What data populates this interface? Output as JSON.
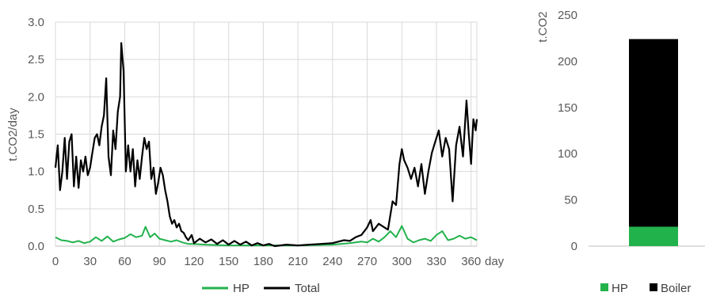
{
  "chart_data": [
    {
      "type": "line",
      "ylabel": "t.CO2/day",
      "xlabel": "day",
      "xlim": [
        0,
        365
      ],
      "ylim": [
        0,
        3.0
      ],
      "x_ticks": [
        "0",
        "30",
        "60",
        "90",
        "120",
        "150",
        "180",
        "210",
        "240",
        "270",
        "300",
        "330",
        "360"
      ],
      "y_ticks": [
        "0.0",
        "0.5",
        "1.0",
        "1.5",
        "2.0",
        "2.5",
        "3.0"
      ],
      "grid": true,
      "legend_position": "bottom",
      "series": [
        {
          "name": "HP",
          "color": "#22b24c",
          "points": [
            [
              0,
              0.12
            ],
            [
              5,
              0.08
            ],
            [
              10,
              0.07
            ],
            [
              15,
              0.05
            ],
            [
              20,
              0.07
            ],
            [
              25,
              0.04
            ],
            [
              30,
              0.06
            ],
            [
              35,
              0.12
            ],
            [
              40,
              0.07
            ],
            [
              45,
              0.13
            ],
            [
              50,
              0.06
            ],
            [
              55,
              0.09
            ],
            [
              60,
              0.11
            ],
            [
              65,
              0.16
            ],
            [
              70,
              0.12
            ],
            [
              75,
              0.14
            ],
            [
              78,
              0.26
            ],
            [
              82,
              0.12
            ],
            [
              86,
              0.17
            ],
            [
              90,
              0.1
            ],
            [
              95,
              0.08
            ],
            [
              100,
              0.06
            ],
            [
              105,
              0.08
            ],
            [
              110,
              0.05
            ],
            [
              115,
              0.03
            ],
            [
              120,
              0.03
            ],
            [
              130,
              0.02
            ],
            [
              150,
              0.01
            ],
            [
              180,
              0.01
            ],
            [
              210,
              0.01
            ],
            [
              240,
              0.02
            ],
            [
              255,
              0.04
            ],
            [
              265,
              0.06
            ],
            [
              270,
              0.05
            ],
            [
              275,
              0.1
            ],
            [
              280,
              0.06
            ],
            [
              285,
              0.12
            ],
            [
              290,
              0.2
            ],
            [
              295,
              0.12
            ],
            [
              300,
              0.27
            ],
            [
              305,
              0.1
            ],
            [
              310,
              0.05
            ],
            [
              315,
              0.08
            ],
            [
              320,
              0.1
            ],
            [
              325,
              0.07
            ],
            [
              330,
              0.15
            ],
            [
              335,
              0.2
            ],
            [
              340,
              0.08
            ],
            [
              345,
              0.1
            ],
            [
              350,
              0.14
            ],
            [
              355,
              0.1
            ],
            [
              360,
              0.12
            ],
            [
              365,
              0.08
            ]
          ]
        },
        {
          "name": "Total",
          "color": "#000000",
          "points": [
            [
              0,
              1.05
            ],
            [
              2,
              1.35
            ],
            [
              4,
              0.75
            ],
            [
              6,
              1.0
            ],
            [
              8,
              1.45
            ],
            [
              10,
              0.9
            ],
            [
              12,
              1.4
            ],
            [
              14,
              1.5
            ],
            [
              16,
              0.8
            ],
            [
              18,
              1.2
            ],
            [
              20,
              0.78
            ],
            [
              22,
              1.15
            ],
            [
              24,
              1.0
            ],
            [
              26,
              1.2
            ],
            [
              28,
              0.95
            ],
            [
              30,
              1.05
            ],
            [
              32,
              1.25
            ],
            [
              34,
              1.45
            ],
            [
              36,
              1.5
            ],
            [
              38,
              1.35
            ],
            [
              40,
              1.6
            ],
            [
              42,
              1.75
            ],
            [
              44,
              2.25
            ],
            [
              46,
              1.2
            ],
            [
              48,
              0.95
            ],
            [
              50,
              1.55
            ],
            [
              52,
              1.3
            ],
            [
              54,
              1.8
            ],
            [
              56,
              2.0
            ],
            [
              57,
              2.72
            ],
            [
              59,
              2.35
            ],
            [
              61,
              1.0
            ],
            [
              63,
              1.35
            ],
            [
              65,
              1.0
            ],
            [
              67,
              1.3
            ],
            [
              69,
              0.8
            ],
            [
              71,
              1.15
            ],
            [
              73,
              0.9
            ],
            [
              75,
              1.2
            ],
            [
              77,
              1.45
            ],
            [
              79,
              1.3
            ],
            [
              81,
              1.4
            ],
            [
              83,
              0.9
            ],
            [
              85,
              1.05
            ],
            [
              87,
              0.7
            ],
            [
              89,
              0.85
            ],
            [
              91,
              1.05
            ],
            [
              93,
              0.95
            ],
            [
              95,
              0.75
            ],
            [
              97,
              0.6
            ],
            [
              99,
              0.4
            ],
            [
              101,
              0.3
            ],
            [
              103,
              0.35
            ],
            [
              105,
              0.25
            ],
            [
              107,
              0.3
            ],
            [
              109,
              0.2
            ],
            [
              111,
              0.18
            ],
            [
              113,
              0.12
            ],
            [
              115,
              0.08
            ],
            [
              118,
              0.15
            ],
            [
              120,
              0.04
            ],
            [
              125,
              0.1
            ],
            [
              130,
              0.05
            ],
            [
              135,
              0.09
            ],
            [
              140,
              0.03
            ],
            [
              145,
              0.08
            ],
            [
              150,
              0.02
            ],
            [
              155,
              0.07
            ],
            [
              160,
              0.02
            ],
            [
              165,
              0.06
            ],
            [
              170,
              0.01
            ],
            [
              175,
              0.04
            ],
            [
              180,
              0.01
            ],
            [
              185,
              0.03
            ],
            [
              190,
              0.0
            ],
            [
              200,
              0.02
            ],
            [
              210,
              0.01
            ],
            [
              220,
              0.02
            ],
            [
              230,
              0.03
            ],
            [
              240,
              0.04
            ],
            [
              245,
              0.06
            ],
            [
              250,
              0.08
            ],
            [
              255,
              0.07
            ],
            [
              260,
              0.12
            ],
            [
              265,
              0.15
            ],
            [
              270,
              0.25
            ],
            [
              273,
              0.35
            ],
            [
              275,
              0.2
            ],
            [
              280,
              0.3
            ],
            [
              285,
              0.25
            ],
            [
              288,
              0.22
            ],
            [
              292,
              0.6
            ],
            [
              295,
              0.55
            ],
            [
              298,
              1.1
            ],
            [
              300,
              1.3
            ],
            [
              302,
              1.15
            ],
            [
              305,
              1.05
            ],
            [
              308,
              0.9
            ],
            [
              311,
              1.05
            ],
            [
              314,
              0.8
            ],
            [
              317,
              1.1
            ],
            [
              320,
              0.7
            ],
            [
              323,
              1.0
            ],
            [
              326,
              1.25
            ],
            [
              329,
              1.4
            ],
            [
              332,
              1.55
            ],
            [
              335,
              1.2
            ],
            [
              338,
              1.45
            ],
            [
              341,
              1.3
            ],
            [
              344,
              0.6
            ],
            [
              347,
              1.35
            ],
            [
              350,
              1.6
            ],
            [
              353,
              1.2
            ],
            [
              356,
              1.95
            ],
            [
              358,
              1.5
            ],
            [
              360,
              1.1
            ],
            [
              362,
              1.7
            ],
            [
              364,
              1.55
            ],
            [
              365,
              1.7
            ]
          ]
        }
      ]
    },
    {
      "type": "bar",
      "stacked": true,
      "ylabel": "t.CO2",
      "ylim": [
        0,
        250
      ],
      "y_ticks": [
        "0",
        "50",
        "100",
        "150",
        "200",
        "250"
      ],
      "grid": false,
      "legend_position": "bottom",
      "categories": [
        ""
      ],
      "series": [
        {
          "name": "HP",
          "color": "#22b24c",
          "values": [
            21
          ]
        },
        {
          "name": "Boiler",
          "color": "#000000",
          "values": [
            203
          ]
        }
      ]
    }
  ]
}
